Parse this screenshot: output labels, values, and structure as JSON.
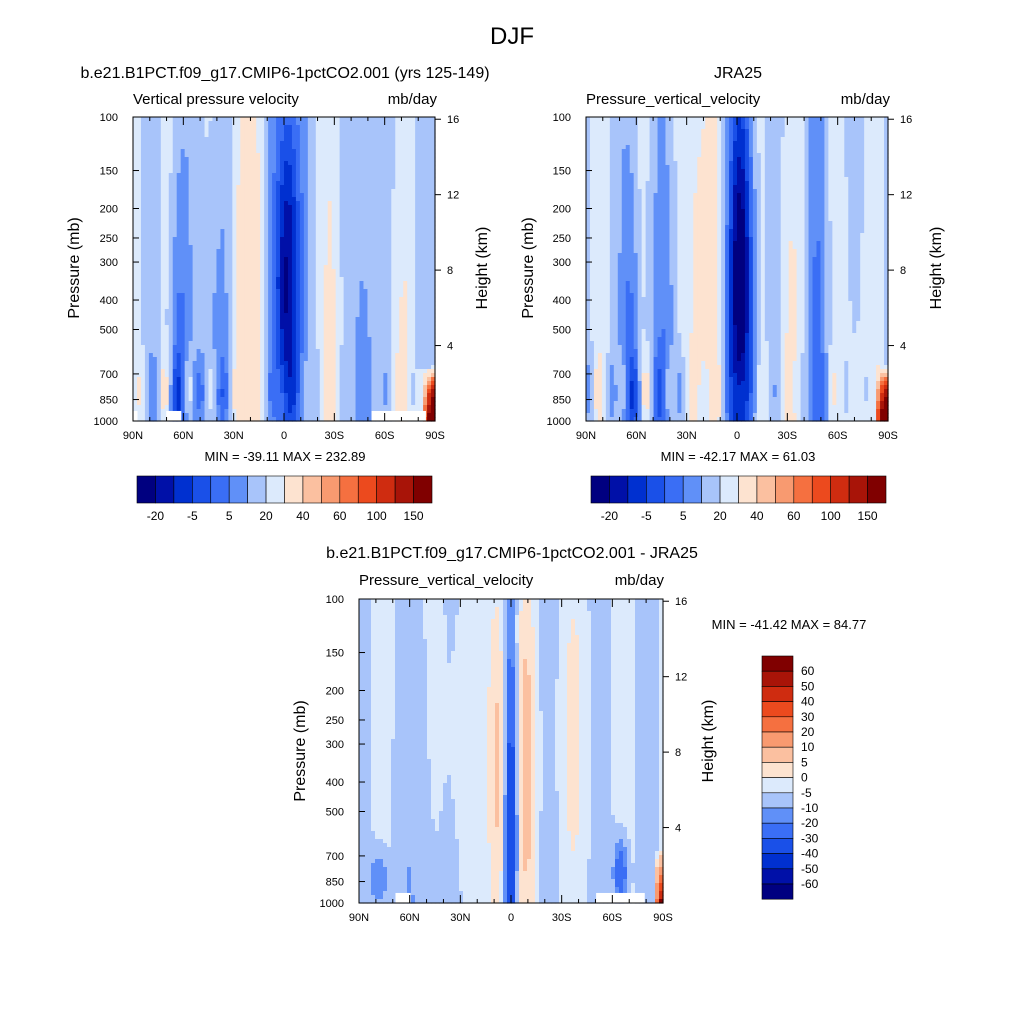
{
  "page_title": "DJF",
  "colors": {
    "blues": [
      "#000080",
      "#0010a8",
      "#0030d0",
      "#1a50e8",
      "#3a6ef5",
      "#6090f8",
      "#a8c4fa",
      "#dceafc"
    ],
    "reds": [
      "#fde3d0",
      "#fbc0a0",
      "#f89a70",
      "#f57040",
      "#ec4a1e",
      "#cf2c10",
      "#a81408",
      "#800000"
    ]
  },
  "chart_data": [
    {
      "type": "contour",
      "title": "b.e21.B1PCT.f09_g17.CMIP6-1pctCO2.001 (yrs 125-149)",
      "left_label": "Vertical pressure velocity",
      "right_label": "mb/day",
      "ylabel": "Pressure (mb)",
      "ylabel_right": "Height (km)",
      "x_ticks": [
        "90N",
        "60N",
        "30N",
        "0",
        "30S",
        "60S",
        "90S"
      ],
      "y_ticks": [
        "100",
        "150",
        "200",
        "250",
        "300",
        "400",
        "500",
        "700",
        "850",
        "1000"
      ],
      "y_ticks_right": [
        "16",
        "12",
        "8",
        "4"
      ],
      "stats": "MIN = -39.11  MAX = 232.89",
      "min": -39.11,
      "max": 232.89,
      "colorbar_labels": [
        "-20",
        "-5",
        "5",
        "20",
        "40",
        "60",
        "100",
        "150"
      ]
    },
    {
      "type": "contour",
      "title": "JRA25",
      "left_label": "Pressure_vertical_velocity",
      "right_label": "mb/day",
      "ylabel": "Pressure (mb)",
      "ylabel_right": "Height (km)",
      "x_ticks": [
        "90N",
        "60N",
        "30N",
        "0",
        "30S",
        "60S",
        "90S"
      ],
      "y_ticks": [
        "100",
        "150",
        "200",
        "250",
        "300",
        "400",
        "500",
        "700",
        "850",
        "1000"
      ],
      "y_ticks_right": [
        "16",
        "12",
        "8",
        "4"
      ],
      "stats": "MIN = -42.17  MAX =  61.03",
      "min": -42.17,
      "max": 61.03,
      "colorbar_labels": [
        "-20",
        "-5",
        "5",
        "20",
        "40",
        "60",
        "100",
        "150"
      ]
    },
    {
      "type": "contour",
      "title": "b.e21.B1PCT.f09_g17.CMIP6-1pctCO2.001 - JRA25",
      "left_label": "Pressure_vertical_velocity",
      "right_label": "mb/day",
      "ylabel": "Pressure (mb)",
      "ylabel_right": "Height (km)",
      "x_ticks": [
        "90N",
        "60N",
        "30N",
        "0",
        "30S",
        "60S",
        "90S"
      ],
      "y_ticks": [
        "100",
        "150",
        "200",
        "250",
        "300",
        "400",
        "500",
        "700",
        "850",
        "1000"
      ],
      "y_ticks_right": [
        "16",
        "12",
        "8",
        "4"
      ],
      "stats": "MIN = -41.42  MAX =  84.77",
      "min": -41.42,
      "max": 84.77,
      "colorbar_labels": [
        "60",
        "50",
        "40",
        "30",
        "20",
        "10",
        "5",
        "0",
        "-5",
        "-10",
        "-20",
        "-30",
        "-40",
        "-50",
        "-60"
      ]
    }
  ]
}
